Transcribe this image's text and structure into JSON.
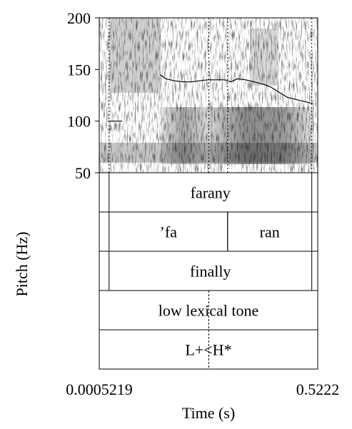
{
  "chart_data": {
    "type": "line",
    "title": "",
    "ylabel": "Pitch (Hz)",
    "xlabel": "Time (s)",
    "ylim": [
      50,
      200
    ],
    "xlim": [
      0.0005219,
      0.5222
    ],
    "yticks": [
      50,
      100,
      150,
      200
    ],
    "xtick_labels": [
      "0.0005219",
      "0.5222"
    ],
    "series": [
      {
        "x": [
          0.022,
          0.055
        ],
        "y": [
          100,
          100
        ]
      },
      {
        "x": [
          0.146,
          0.16,
          0.18,
          0.2,
          0.22,
          0.24,
          0.26,
          0.28,
          0.3,
          0.315,
          0.33,
          0.35,
          0.37,
          0.39,
          0.41,
          0.43,
          0.45,
          0.47,
          0.49,
          0.51
        ],
        "y": [
          145,
          141,
          139,
          138,
          138,
          139,
          140,
          140,
          140,
          138,
          141,
          140,
          138,
          136,
          133,
          128,
          123,
          121,
          119,
          117
        ]
      }
    ],
    "grid": false,
    "background": "spectrogram",
    "boundaries": [
      0.024,
      0.262,
      0.307,
      0.508
    ],
    "tiers": [
      {
        "intervals": [
          {
            "start": 0.024,
            "end": 0.508,
            "label": "farany"
          }
        ]
      },
      {
        "intervals": [
          {
            "start": 0.024,
            "end": 0.307,
            "label": "’fa"
          },
          {
            "start": 0.307,
            "end": 0.508,
            "label": "ran"
          }
        ]
      },
      {
        "intervals": [
          {
            "start": 0.024,
            "end": 0.508,
            "label": "finally"
          }
        ]
      },
      {
        "intervals": [
          {
            "start": 0.0005219,
            "end": 0.5222,
            "label": "low lexical tone"
          }
        ]
      },
      {
        "intervals": [
          {
            "start": 0.0005219,
            "end": 0.5222,
            "label": "L+<H*"
          }
        ],
        "points": [
          0.262
        ]
      }
    ]
  }
}
